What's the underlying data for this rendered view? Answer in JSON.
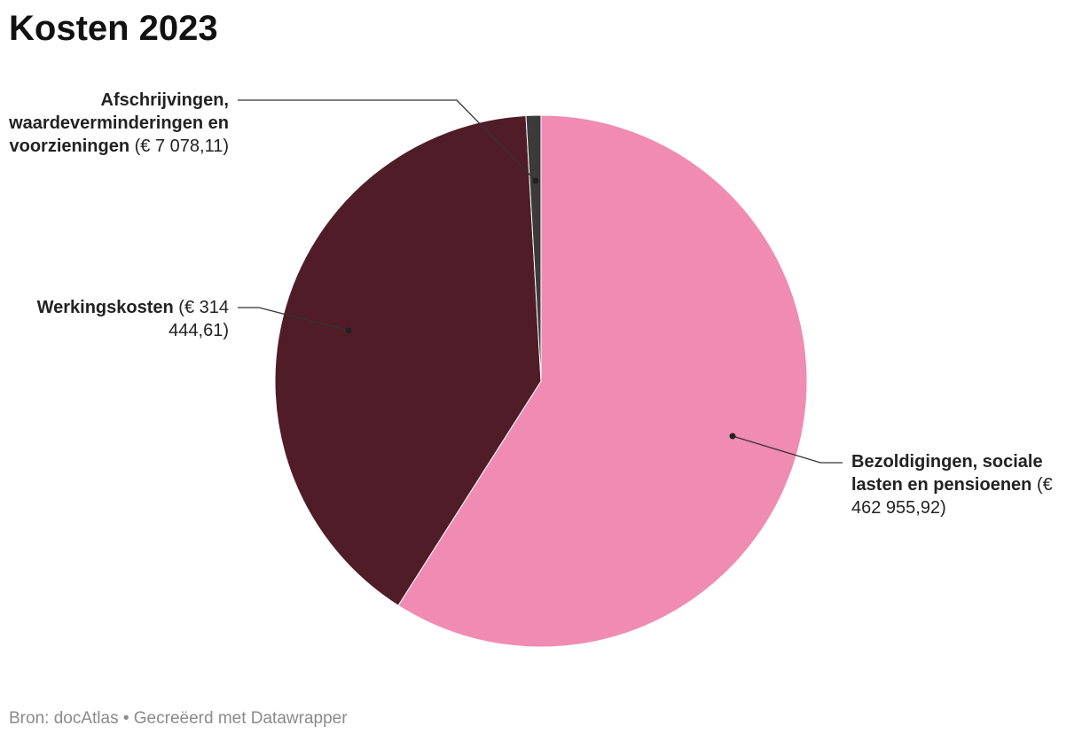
{
  "chart_data": {
    "type": "pie",
    "title": "Kosten 2023",
    "categories": [
      "Bezoldigingen, sociale lasten en pensioenen",
      "Werkingskosten",
      "Afschrijvingen, waardeverminderingen en voorzieningen"
    ],
    "values": [
      462955.92,
      314444.61,
      7078.11
    ],
    "value_labels": [
      "(€ 462 955,92)",
      "(€ 314 444,61)",
      "(€ 7 078,11)"
    ],
    "colors": [
      "#f08bb2",
      "#501c28",
      "#3b3b3b"
    ],
    "source": "Bron: docAtlas • Gecreëerd met Datawrapper"
  }
}
